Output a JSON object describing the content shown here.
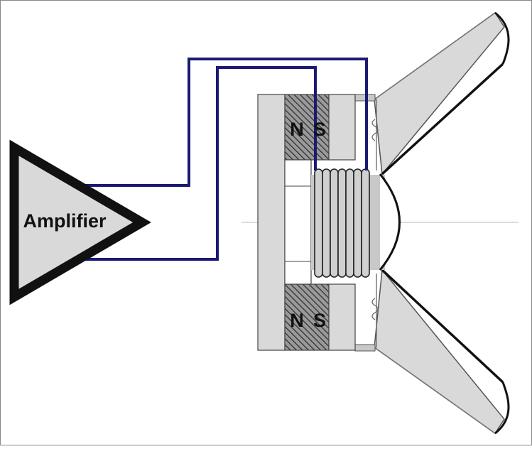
{
  "amplifier": {
    "label": "Amplifier"
  },
  "magnet_top": {
    "north": "N",
    "south": "S"
  },
  "magnet_bottom": {
    "north": "N",
    "south": "S"
  },
  "colors": {
    "wire": "#1a1a72",
    "pole_piece": "#d9d9d9",
    "amplifier_fill": "#d9d9d9",
    "outline": "#111111"
  }
}
